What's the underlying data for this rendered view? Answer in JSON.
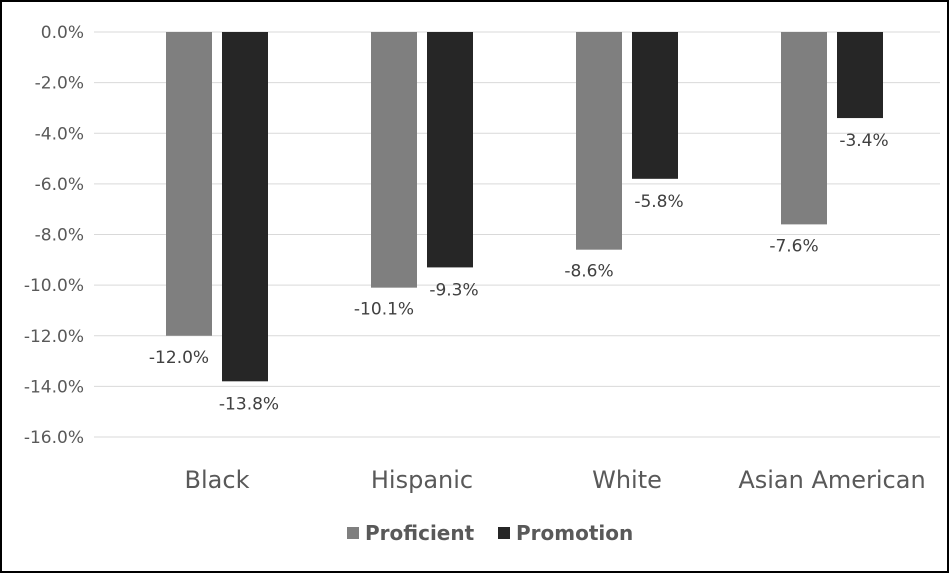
{
  "chart_data": {
    "type": "bar",
    "categories": [
      "Black",
      "Hispanic",
      "White",
      "Asian American"
    ],
    "series": [
      {
        "name": "Proficient",
        "values": [
          -12.0,
          -10.1,
          -8.6,
          -7.6
        ],
        "labels": [
          "-12.0%",
          "-10.1%",
          "-8.6%",
          "-7.6%"
        ],
        "color": "#7f7f7f"
      },
      {
        "name": "Promotion",
        "values": [
          -13.8,
          -9.3,
          -5.8,
          -3.4
        ],
        "labels": [
          "-13.8%",
          "-9.3%",
          "-5.8%",
          "-3.4%"
        ],
        "color": "#262626"
      }
    ],
    "y_ticks": [
      0,
      -2,
      -4,
      -6,
      -8,
      -10,
      -12,
      -14,
      -16
    ],
    "y_tick_labels": [
      "0.0%",
      "-2.0%",
      "-4.0%",
      "-6.0%",
      "-8.0%",
      "-10.0%",
      "-12.0%",
      "-14.0%",
      "-16.0%"
    ],
    "ylim": [
      -16,
      0
    ],
    "grid": true,
    "gridline_color": "#d9d9d9",
    "legend_position": "bottom",
    "title": "",
    "xlabel": "",
    "ylabel": ""
  }
}
